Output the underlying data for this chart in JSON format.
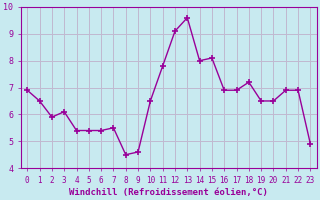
{
  "x": [
    0,
    1,
    2,
    3,
    4,
    5,
    6,
    7,
    8,
    9,
    10,
    11,
    12,
    13,
    14,
    15,
    16,
    17,
    18,
    19,
    20,
    21,
    22,
    23
  ],
  "y": [
    6.9,
    6.5,
    5.9,
    6.1,
    5.4,
    5.4,
    5.4,
    5.5,
    4.5,
    4.6,
    6.5,
    7.8,
    9.1,
    9.6,
    8.0,
    8.1,
    6.9,
    6.9,
    7.2,
    6.5,
    6.5,
    6.9,
    6.9,
    4.9
  ],
  "line_color": "#990099",
  "marker": "+",
  "marker_size": 4,
  "marker_lw": 1.2,
  "line_width": 1.0,
  "bg_color": "#c8eaf0",
  "grid_color": "#c0b8d0",
  "xlabel": "Windchill (Refroidissement éolien,°C)",
  "ylim": [
    4,
    10
  ],
  "xlim_min": -0.5,
  "xlim_max": 23.5,
  "yticks": [
    4,
    5,
    6,
    7,
    8,
    9,
    10
  ],
  "xticks": [
    0,
    1,
    2,
    3,
    4,
    5,
    6,
    7,
    8,
    9,
    10,
    11,
    12,
    13,
    14,
    15,
    16,
    17,
    18,
    19,
    20,
    21,
    22,
    23
  ],
  "tick_color": "#990099",
  "label_color": "#990099",
  "spine_color": "#990099",
  "tick_fontsize": 5.5,
  "xlabel_fontsize": 6.5
}
